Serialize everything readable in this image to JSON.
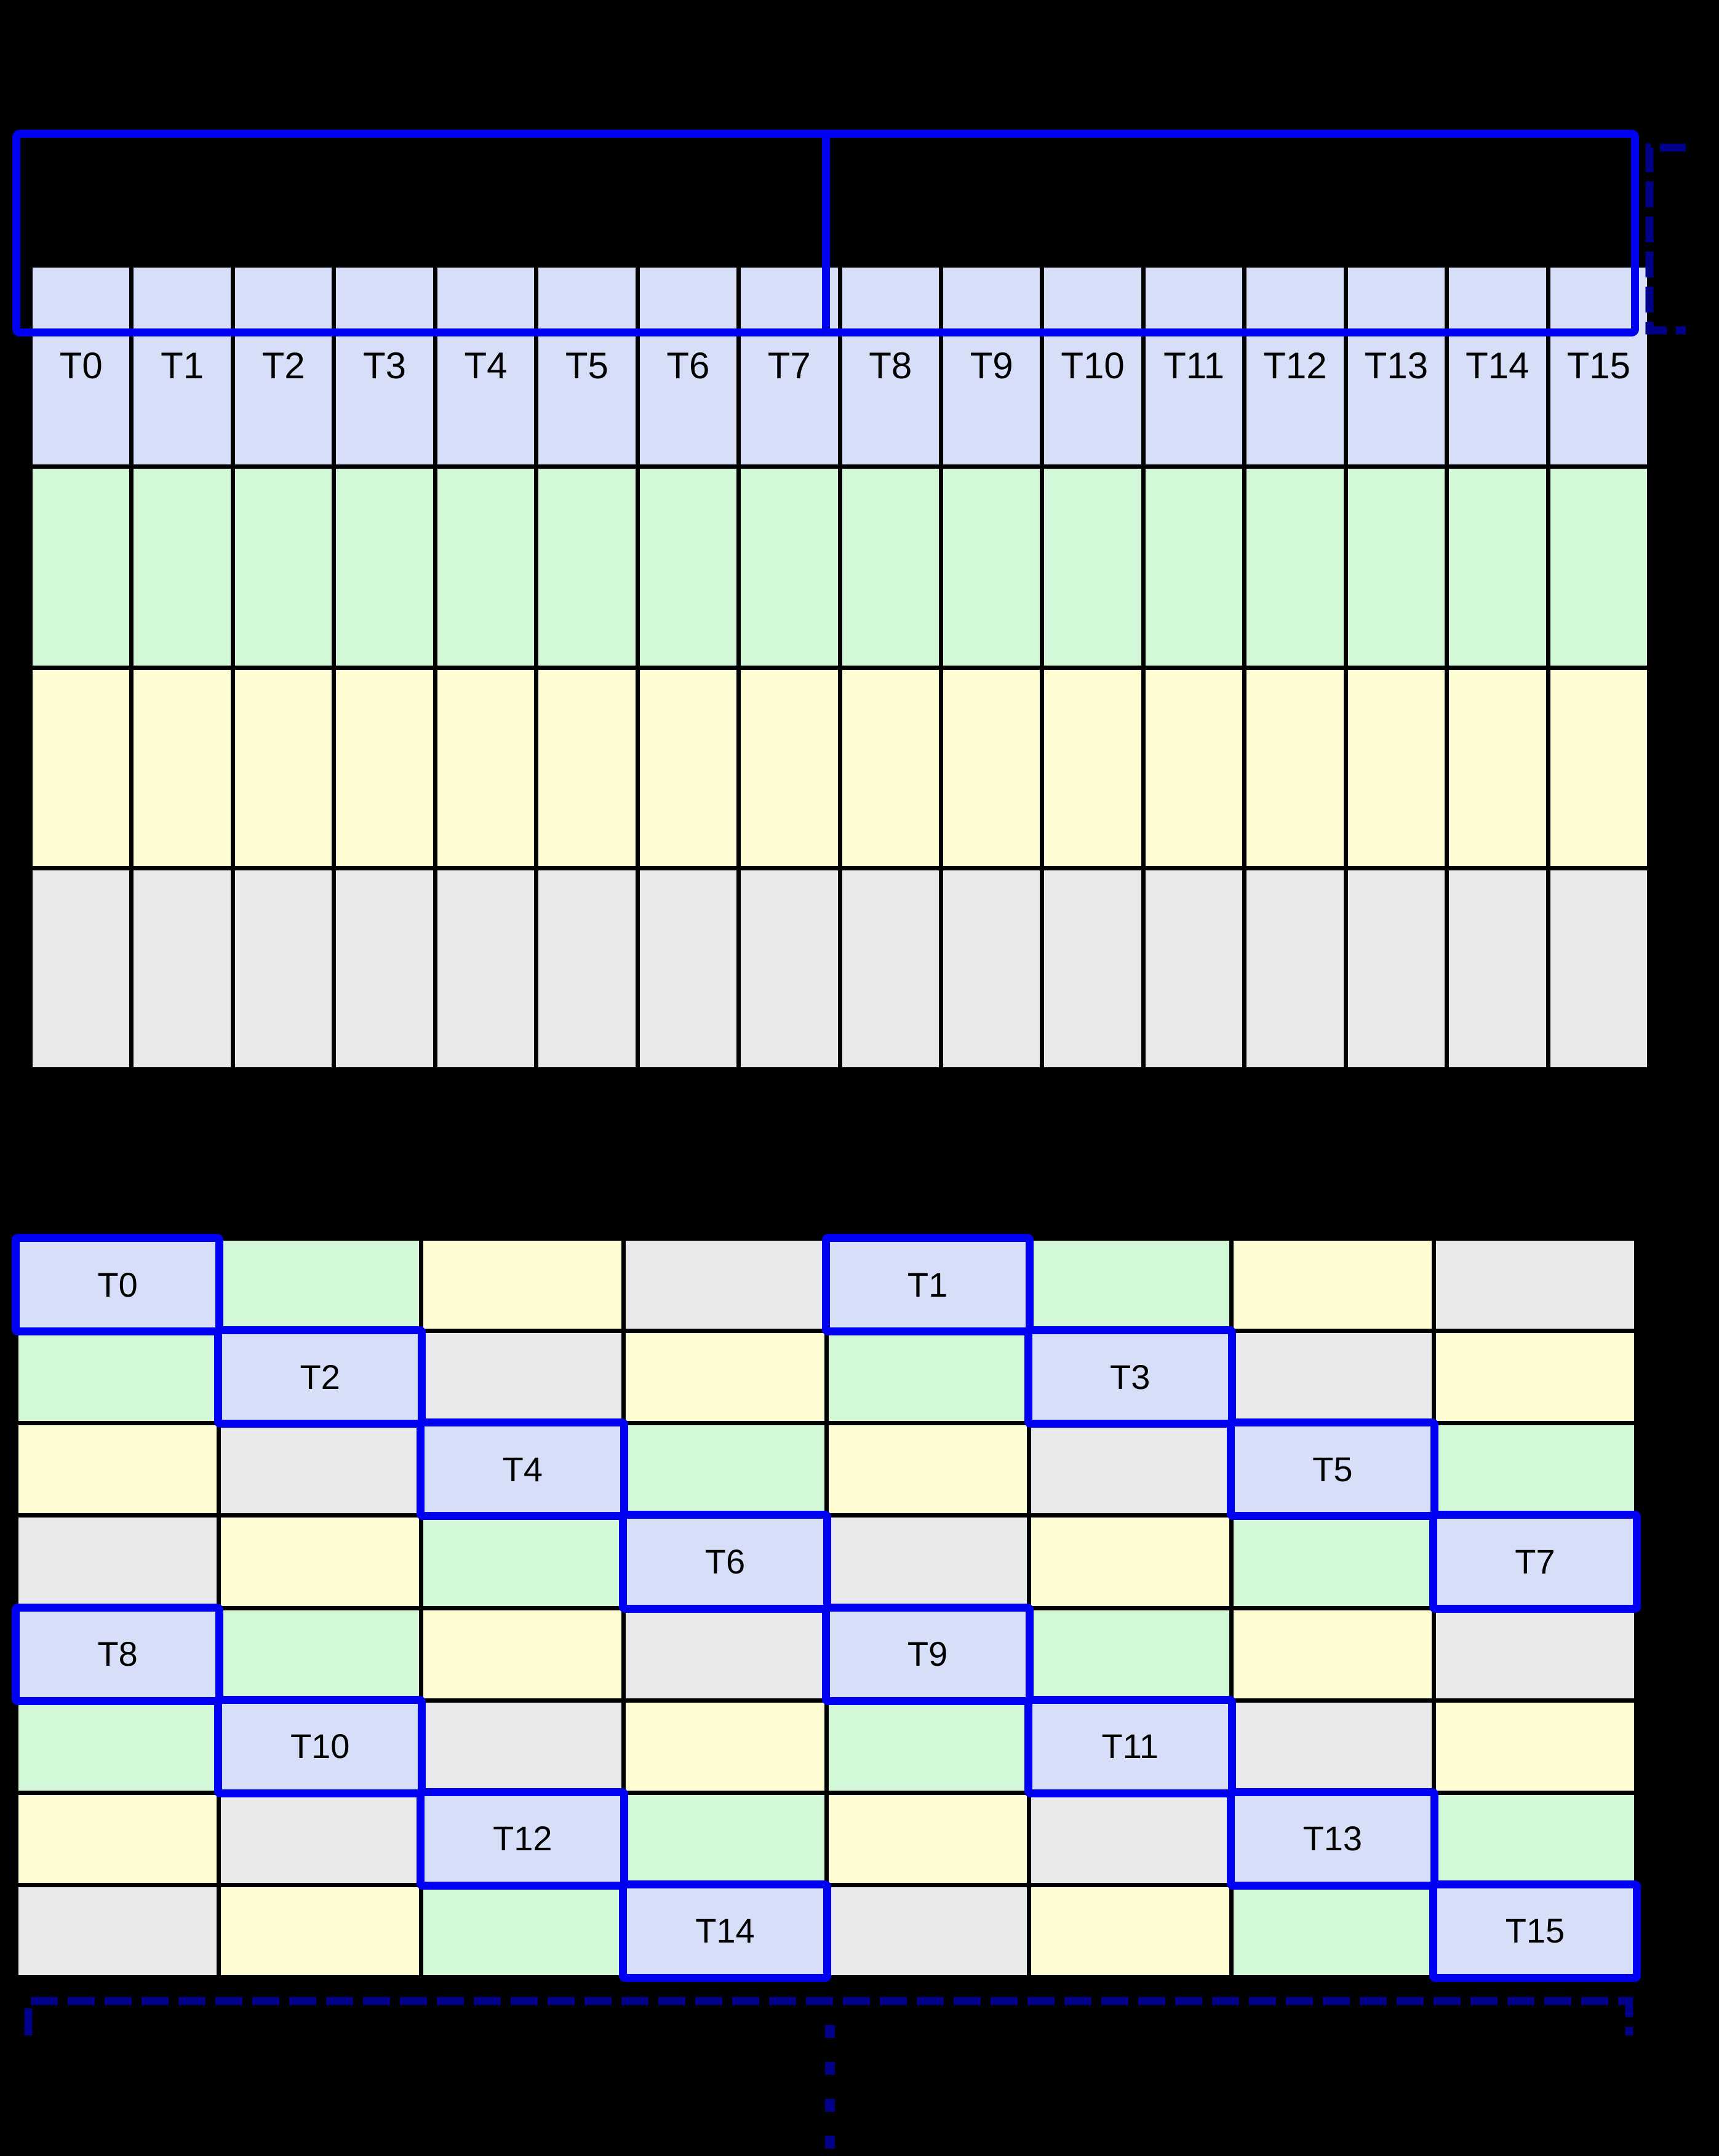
{
  "diagram": {
    "description": "thread-to-memory-cell mapping diagram with two grids",
    "thread_labels": [
      "T0",
      "T1",
      "T2",
      "T3",
      "T4",
      "T5",
      "T6",
      "T7",
      "T8",
      "T9",
      "T10",
      "T11",
      "T12",
      "T13",
      "T14",
      "T15"
    ]
  },
  "colors": {
    "page_background": "#000000",
    "grid_line": "#000000",
    "label": "#000000",
    "highlight_border": "#0000f2",
    "bracket": "#00008b",
    "cell_fills": {
      "thread": "#d6def8",
      "green": "#d3f8d8",
      "yellow": "#fdfcd3",
      "gray": "#e9e9eb"
    }
  },
  "top_grid": {
    "columns": 16,
    "row_kinds": [
      "thread",
      "green",
      "yellow",
      "gray"
    ],
    "group_divider_after_column": 8,
    "groups": 2
  },
  "bottom_grid": {
    "columns": 8,
    "rows": [
      [
        "T0",
        "green",
        "yellow",
        "gray",
        "T1",
        "green",
        "yellow",
        "gray"
      ],
      [
        "green",
        "T2",
        "gray",
        "yellow",
        "green",
        "T3",
        "gray",
        "yellow"
      ],
      [
        "yellow",
        "gray",
        "T4",
        "green",
        "yellow",
        "gray",
        "T5",
        "green"
      ],
      [
        "gray",
        "yellow",
        "green",
        "T6",
        "gray",
        "yellow",
        "green",
        "T7"
      ],
      [
        "T8",
        "green",
        "yellow",
        "gray",
        "T9",
        "green",
        "yellow",
        "gray"
      ],
      [
        "green",
        "T10",
        "gray",
        "yellow",
        "green",
        "T11",
        "gray",
        "yellow"
      ],
      [
        "yellow",
        "gray",
        "T12",
        "green",
        "yellow",
        "gray",
        "T13",
        "green"
      ],
      [
        "gray",
        "yellow",
        "green",
        "T14",
        "gray",
        "yellow",
        "green",
        "T15"
      ]
    ]
  }
}
